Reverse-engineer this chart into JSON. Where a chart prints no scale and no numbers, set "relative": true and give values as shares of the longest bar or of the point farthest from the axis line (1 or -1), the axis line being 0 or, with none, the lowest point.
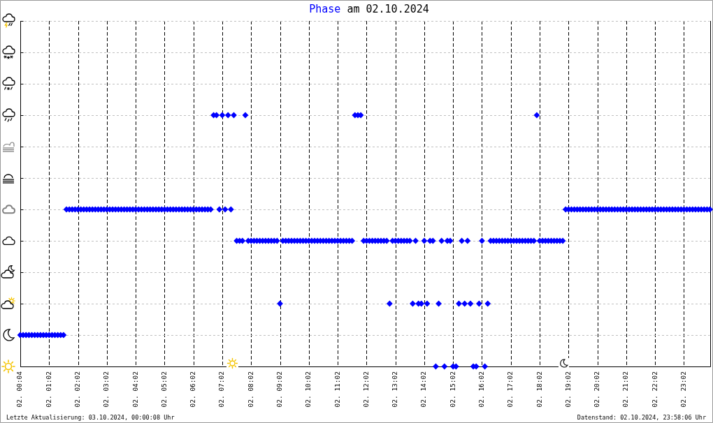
{
  "chart_data": {
    "type": "scatter",
    "title": "Phase am 02.10.2024",
    "annotations": [
      "Letzte Aktualisierung: 03.10.2024, 00:00:08 Uhr",
      "Datenstand: 02.10.2024, 23:58:06 Uhr"
    ],
    "relative": true,
    "marker": "diamond",
    "grid": true,
    "color": "#0000ff",
    "categories": [
      "02. 00:04",
      null,
      null,
      null,
      null,
      null,
      null,
      null,
      null,
      null,
      "02. 01:02",
      null,
      null,
      null,
      null,
      null,
      null,
      null,
      null,
      null,
      "02. 02:02",
      null,
      null,
      null,
      null,
      null,
      null,
      null,
      null,
      null,
      "02. 03:02",
      null,
      null,
      null,
      null,
      null,
      null,
      null,
      null,
      null,
      "02. 04:02",
      null,
      null,
      null,
      null,
      null,
      null,
      null,
      null,
      null,
      "02. 05:02",
      null,
      null,
      null,
      null,
      null,
      null,
      null,
      null,
      null,
      "02. 06:02",
      null,
      null,
      null,
      null,
      null,
      null,
      null,
      null,
      null,
      "02. 07:02",
      null,
      null,
      null,
      null,
      null,
      null,
      null,
      null,
      null,
      "02. 08:02",
      null,
      null,
      null,
      null,
      null,
      null,
      null,
      null,
      null,
      "02. 09:02",
      null,
      null,
      null,
      null,
      null,
      null,
      null,
      null,
      null,
      "02. 10:02",
      null,
      null,
      null,
      null,
      null,
      null,
      null,
      null,
      null,
      "02. 11:02",
      null,
      null,
      null,
      null,
      null,
      null,
      null,
      null,
      null,
      "02. 12:02",
      null,
      null,
      null,
      null,
      null,
      null,
      null,
      null,
      null,
      "02. 13:02",
      null,
      null,
      null,
      null,
      null,
      null,
      null,
      null,
      null,
      "02. 14:02",
      null,
      null,
      null,
      null,
      null,
      null,
      null,
      null,
      null,
      "02. 15:02",
      null,
      null,
      null,
      null,
      null,
      null,
      null,
      null,
      null,
      "02. 16:02",
      null,
      null,
      null,
      null,
      null,
      null,
      null,
      null,
      null,
      "02. 17:02",
      null,
      null,
      null,
      null,
      null,
      null,
      null,
      null,
      null,
      "02. 18:02",
      null,
      null,
      null,
      null,
      null,
      null,
      null,
      null,
      null,
      "02. 19:02",
      null,
      null,
      null,
      null,
      null,
      null,
      null,
      null,
      null,
      "02. 20:02",
      null,
      null,
      null,
      null,
      null,
      null,
      null,
      null,
      null,
      "02. 21:02",
      null,
      null,
      null,
      null,
      null,
      null,
      null,
      null,
      null,
      "02. 22:02",
      null,
      null,
      null,
      null,
      null,
      null,
      null,
      null,
      null,
      "02. 23:02",
      null,
      null,
      null,
      null,
      null,
      null,
      null,
      null,
      null
    ],
    "values": [
      0.125,
      0.125,
      0.125,
      0.125,
      0.125,
      0.125,
      0.125,
      0.125,
      0.125,
      0.125,
      0.125,
      0.125,
      0.125,
      0.125,
      0.125,
      0.125,
      0.625,
      0.625,
      0.625,
      0.625,
      0.625,
      0.625,
      0.625,
      0.625,
      0.625,
      0.625,
      0.625,
      0.625,
      0.625,
      0.625,
      0.625,
      0.625,
      0.625,
      0.625,
      0.625,
      0.625,
      0.625,
      0.625,
      0.625,
      0.625,
      0.625,
      0.625,
      0.625,
      0.625,
      0.625,
      0.625,
      0.625,
      0.625,
      0.625,
      0.625,
      0.625,
      0.625,
      0.625,
      0.625,
      0.625,
      0.625,
      0.625,
      0.625,
      0.625,
      0.625,
      0.625,
      0.625,
      0.625,
      0.625,
      0.625,
      0.625,
      0.625,
      1,
      1,
      0.625,
      1,
      0.625,
      1,
      0.625,
      1,
      0.5,
      0.5,
      0.5,
      1,
      0.5,
      0.5,
      0.5,
      0.5,
      0.5,
      0.5,
      0.5,
      0.5,
      0.5,
      0.5,
      0.5,
      0.25,
      0.5,
      0.5,
      0.5,
      0.5,
      0.5,
      0.5,
      0.5,
      0.5,
      0.5,
      0.5,
      0.5,
      0.5,
      0.5,
      0.5,
      0.5,
      0.5,
      0.5,
      0.5,
      0.5,
      0.5,
      0.5,
      0.5,
      0.5,
      0.5,
      0.5,
      1,
      1,
      1,
      0.5,
      0.5,
      0.5,
      0.5,
      0.5,
      0.5,
      0.5,
      0.5,
      0.5,
      0.25,
      0.5,
      0.5,
      0.5,
      0.5,
      0.5,
      0.5,
      0.5,
      0.25,
      0.5,
      0.25,
      0.25,
      0.5,
      0.25,
      0.5,
      0.5,
      0,
      0.25,
      0.5,
      0,
      0.5,
      0.5,
      0,
      0,
      0.25,
      0.5,
      0.25,
      0.5,
      0.25,
      0,
      0,
      0.25,
      0.5,
      0,
      0.25,
      0.5,
      0.5,
      0.5,
      0.5,
      0.5,
      0.5,
      0.5,
      0.5,
      0.5,
      0.5,
      0.5,
      0.5,
      0.5,
      0.5,
      0.5,
      0.5,
      1,
      0.5,
      0.5,
      0.5,
      0.5,
      0.5,
      0.5,
      0.5,
      0.5,
      0.5,
      0.625,
      0.625,
      0.625,
      0.625,
      0.625,
      0.625,
      0.625,
      0.625,
      0.625,
      0.625,
      0.625,
      0.625,
      0.625,
      0.625,
      0.625,
      0.625,
      0.625,
      0.625,
      0.625,
      0.625,
      0.625,
      0.625,
      0.625,
      0.625,
      0.625,
      0.625,
      0.625,
      0.625,
      0.625,
      0.625,
      0.625,
      0.625,
      0.625,
      0.625,
      0.625,
      0.625,
      0.625,
      0.625,
      0.625,
      0.625,
      0.625,
      0.625,
      0.625,
      0.625,
      0.625,
      0.625,
      0.625,
      0.625,
      0.625,
      0.625,
      0.625
    ]
  }
}
